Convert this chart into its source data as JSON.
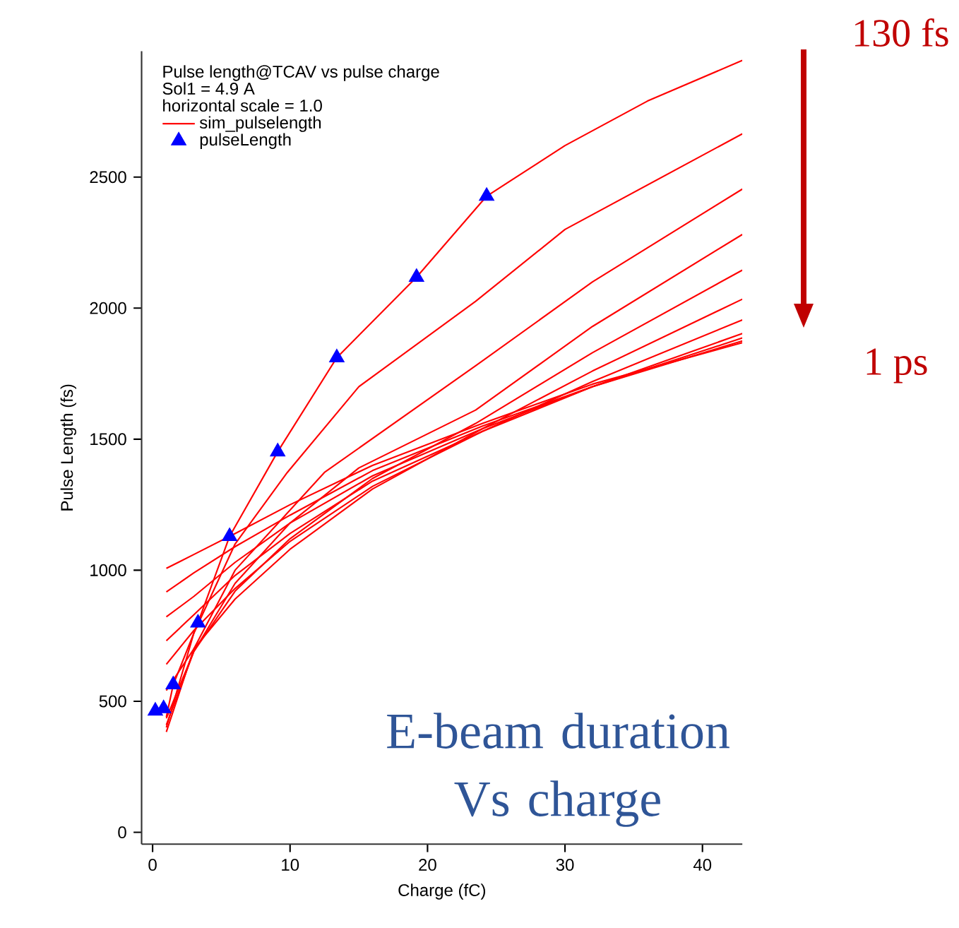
{
  "chart_data": {
    "type": "line",
    "xlabel": "Charge (fC)",
    "ylabel": "Pulse Length (fs)",
    "legend_title": "Pulse length@TCAV vs pulse charge",
    "annotations": [
      "Sol1 = 4.9 A",
      "horizontal scale = 1.0",
      "130 fs",
      "1 ps",
      "E-beam duration Vs charge"
    ],
    "xlim": [
      -0.8,
      42.9
    ],
    "ylim": [
      -45,
      2980
    ],
    "xticks": [
      0,
      10,
      20,
      30,
      40
    ],
    "yticks": [
      0,
      500,
      1000,
      1500,
      2000,
      2500
    ],
    "grid": false,
    "legend": "top left",
    "series": [
      {
        "name": "sim_pulselength",
        "color": "#ff0000",
        "marker": "none",
        "x": [
          1,
          1.5,
          3.3,
          5.6,
          9.1,
          13.4,
          19.2,
          24.3,
          30,
          36,
          42.9
        ],
        "values": [
          440,
          563,
          799,
          1129,
          1452,
          1811,
          2118,
          2427,
          2620,
          2790,
          2945
        ]
      },
      {
        "color": "#ff0000",
        "marker": "none",
        "x": [
          1,
          3,
          6,
          9.8,
          15,
          23.5,
          30,
          42.9
        ],
        "values": [
          400,
          760,
          1100,
          1373,
          1700,
          2026,
          2300,
          2665
        ]
      },
      {
        "color": "#ff0000",
        "marker": "none",
        "x": [
          1,
          3,
          6,
          12.5,
          23.5,
          32,
          42.9
        ],
        "values": [
          383,
          700,
          1000,
          1373,
          1780,
          2100,
          2454
        ]
      },
      {
        "color": "#ff0000",
        "marker": "none",
        "x": [
          1,
          3,
          6,
          10,
          15,
          23.5,
          32,
          42.9
        ],
        "values": [
          410,
          690,
          950,
          1180,
          1390,
          1611,
          1930,
          2281
        ]
      },
      {
        "color": "#ff0000",
        "marker": "none",
        "x": [
          1,
          3,
          6,
          10,
          16,
          23.5,
          32,
          42.9
        ],
        "values": [
          435,
          690,
          920,
          1120,
          1350,
          1560,
          1830,
          2145
        ]
      },
      {
        "color": "#ff0000",
        "marker": "none",
        "x": [
          1,
          3,
          6,
          10,
          16,
          24,
          32,
          42.9
        ],
        "values": [
          541,
          700,
          890,
          1080,
          1310,
          1540,
          1760,
          2034
        ]
      },
      {
        "color": "#ff0000",
        "marker": "none",
        "x": [
          1,
          3,
          6,
          10,
          16,
          24,
          32,
          42.9
        ],
        "values": [
          641,
          770,
          930,
          1110,
          1320,
          1530,
          1720,
          1955
        ]
      },
      {
        "color": "#ff0000",
        "marker": "none",
        "x": [
          1,
          3,
          6,
          10,
          16,
          24,
          32,
          42.9
        ],
        "values": [
          731,
          830,
          980,
          1140,
          1340,
          1530,
          1700,
          1903
        ]
      },
      {
        "color": "#ff0000",
        "marker": "none",
        "x": [
          1,
          3,
          6,
          10,
          16,
          24,
          32,
          42.9
        ],
        "values": [
          822,
          900,
          1030,
          1180,
          1360,
          1540,
          1700,
          1886
        ]
      },
      {
        "color": "#ff0000",
        "marker": "none",
        "x": [
          1,
          3,
          6,
          10,
          16,
          24,
          32,
          42.9
        ],
        "values": [
          917,
          990,
          1090,
          1210,
          1380,
          1550,
          1700,
          1875
        ]
      },
      {
        "color": "#ff0000",
        "marker": "none",
        "x": [
          1,
          3,
          6,
          10,
          16,
          24,
          32,
          42.9
        ],
        "values": [
          1007,
          1060,
          1140,
          1250,
          1400,
          1560,
          1710,
          1868
        ]
      },
      {
        "name": "pulseLength",
        "type": "scatter",
        "color": "#0000ff",
        "marker": "triangle",
        "x": [
          0.2,
          0.8,
          1.5,
          3.3,
          5.6,
          9.1,
          13.4,
          19.2,
          24.3
        ],
        "values": [
          463,
          472,
          563,
          799,
          1129,
          1452,
          1811,
          2118,
          2427
        ]
      }
    ]
  }
}
